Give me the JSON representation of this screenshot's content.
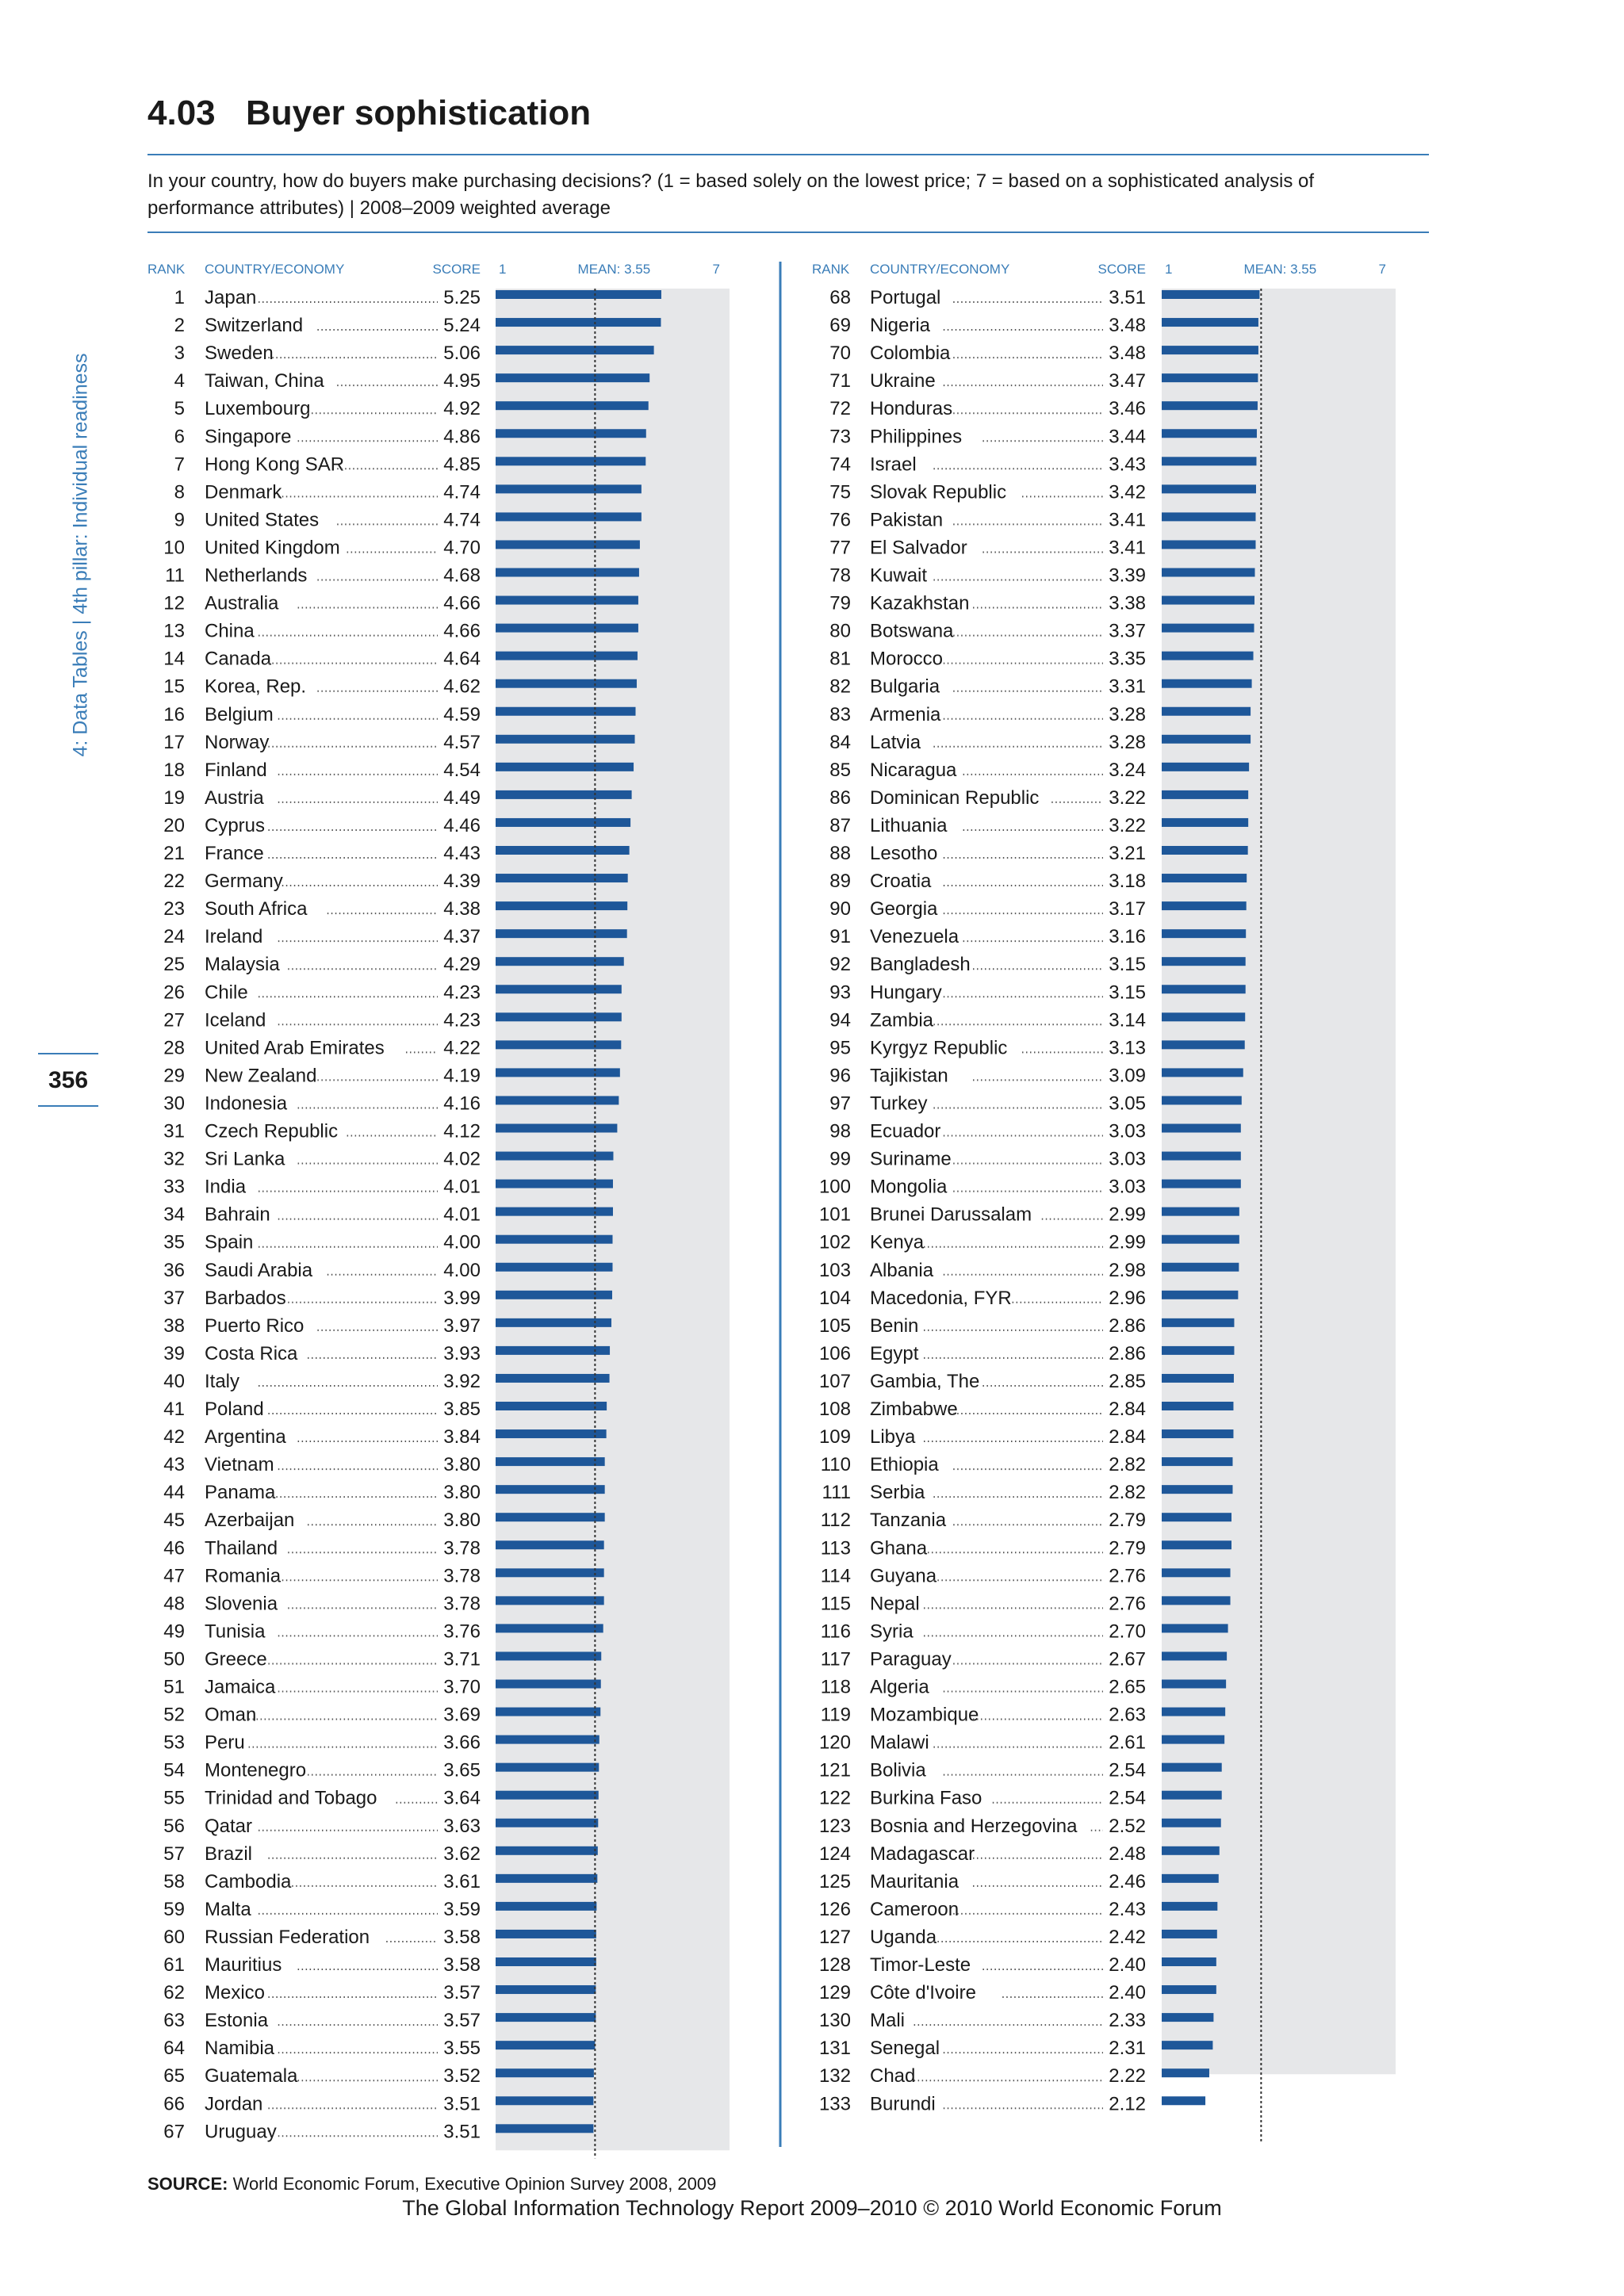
{
  "sidebar": {
    "label": "4: Data Tables  |  4th pillar: Individual readiness"
  },
  "page_number": "356",
  "title": {
    "number": "4.03",
    "text": "Buyer sophistication"
  },
  "question": "In your country, how do buyers make purchasing decisions?   (1 = based solely on the lowest price; 7 = based on a sophisticated analysis of performance attributes)  |  2008–2009 weighted average",
  "source": {
    "label": "SOURCE:",
    "text": "World Economic Forum, Executive Opinion Survey 2008, 2009"
  },
  "footer": "The Global Information Technology Report 2009–2010 © 2010 World Economic Forum",
  "colors": {
    "accent": "#3a7db8",
    "bar": "#1e5799",
    "panel": "#e6e7e9",
    "text": "#1a1a1a"
  },
  "chart_data": {
    "type": "bar",
    "orientation": "horizontal",
    "column_headers": {
      "rank": "RANK",
      "country": "COUNTRY/ECONOMY",
      "score": "SCORE",
      "scale_min": "1",
      "mean": "MEAN: 3.55",
      "scale_max": "7"
    },
    "xlim": [
      1,
      7
    ],
    "mean": 3.55,
    "rows": [
      {
        "rank": 1,
        "country": "Japan",
        "score": 5.25
      },
      {
        "rank": 2,
        "country": "Switzerland",
        "score": 5.24
      },
      {
        "rank": 3,
        "country": "Sweden",
        "score": 5.06
      },
      {
        "rank": 4,
        "country": "Taiwan, China",
        "score": 4.95
      },
      {
        "rank": 5,
        "country": "Luxembourg",
        "score": 4.92
      },
      {
        "rank": 6,
        "country": "Singapore",
        "score": 4.86
      },
      {
        "rank": 7,
        "country": "Hong Kong SAR",
        "score": 4.85
      },
      {
        "rank": 8,
        "country": "Denmark",
        "score": 4.74
      },
      {
        "rank": 9,
        "country": "United States",
        "score": 4.74
      },
      {
        "rank": 10,
        "country": "United Kingdom",
        "score": 4.7
      },
      {
        "rank": 11,
        "country": "Netherlands",
        "score": 4.68
      },
      {
        "rank": 12,
        "country": "Australia",
        "score": 4.66
      },
      {
        "rank": 13,
        "country": "China",
        "score": 4.66
      },
      {
        "rank": 14,
        "country": "Canada",
        "score": 4.64
      },
      {
        "rank": 15,
        "country": "Korea, Rep.",
        "score": 4.62
      },
      {
        "rank": 16,
        "country": "Belgium",
        "score": 4.59
      },
      {
        "rank": 17,
        "country": "Norway",
        "score": 4.57
      },
      {
        "rank": 18,
        "country": "Finland",
        "score": 4.54
      },
      {
        "rank": 19,
        "country": "Austria",
        "score": 4.49
      },
      {
        "rank": 20,
        "country": "Cyprus",
        "score": 4.46
      },
      {
        "rank": 21,
        "country": "France",
        "score": 4.43
      },
      {
        "rank": 22,
        "country": "Germany",
        "score": 4.39
      },
      {
        "rank": 23,
        "country": "South Africa",
        "score": 4.38
      },
      {
        "rank": 24,
        "country": "Ireland",
        "score": 4.37
      },
      {
        "rank": 25,
        "country": "Malaysia",
        "score": 4.29
      },
      {
        "rank": 26,
        "country": "Chile",
        "score": 4.23
      },
      {
        "rank": 27,
        "country": "Iceland",
        "score": 4.23
      },
      {
        "rank": 28,
        "country": "United Arab Emirates",
        "score": 4.22
      },
      {
        "rank": 29,
        "country": "New Zealand",
        "score": 4.19
      },
      {
        "rank": 30,
        "country": "Indonesia",
        "score": 4.16
      },
      {
        "rank": 31,
        "country": "Czech Republic",
        "score": 4.12
      },
      {
        "rank": 32,
        "country": "Sri Lanka",
        "score": 4.02
      },
      {
        "rank": 33,
        "country": "India",
        "score": 4.01
      },
      {
        "rank": 34,
        "country": "Bahrain",
        "score": 4.01
      },
      {
        "rank": 35,
        "country": "Spain",
        "score": 4.0
      },
      {
        "rank": 36,
        "country": "Saudi Arabia",
        "score": 4.0
      },
      {
        "rank": 37,
        "country": "Barbados",
        "score": 3.99
      },
      {
        "rank": 38,
        "country": "Puerto Rico",
        "score": 3.97
      },
      {
        "rank": 39,
        "country": "Costa Rica",
        "score": 3.93
      },
      {
        "rank": 40,
        "country": "Italy",
        "score": 3.92
      },
      {
        "rank": 41,
        "country": "Poland",
        "score": 3.85
      },
      {
        "rank": 42,
        "country": "Argentina",
        "score": 3.84
      },
      {
        "rank": 43,
        "country": "Vietnam",
        "score": 3.8
      },
      {
        "rank": 44,
        "country": "Panama",
        "score": 3.8
      },
      {
        "rank": 45,
        "country": "Azerbaijan",
        "score": 3.8
      },
      {
        "rank": 46,
        "country": "Thailand",
        "score": 3.78
      },
      {
        "rank": 47,
        "country": "Romania",
        "score": 3.78
      },
      {
        "rank": 48,
        "country": "Slovenia",
        "score": 3.78
      },
      {
        "rank": 49,
        "country": "Tunisia",
        "score": 3.76
      },
      {
        "rank": 50,
        "country": "Greece",
        "score": 3.71
      },
      {
        "rank": 51,
        "country": "Jamaica",
        "score": 3.7
      },
      {
        "rank": 52,
        "country": "Oman",
        "score": 3.69
      },
      {
        "rank": 53,
        "country": "Peru",
        "score": 3.66
      },
      {
        "rank": 54,
        "country": "Montenegro",
        "score": 3.65
      },
      {
        "rank": 55,
        "country": "Trinidad and Tobago",
        "score": 3.64
      },
      {
        "rank": 56,
        "country": "Qatar",
        "score": 3.63
      },
      {
        "rank": 57,
        "country": "Brazil",
        "score": 3.62
      },
      {
        "rank": 58,
        "country": "Cambodia",
        "score": 3.61
      },
      {
        "rank": 59,
        "country": "Malta",
        "score": 3.59
      },
      {
        "rank": 60,
        "country": "Russian Federation",
        "score": 3.58
      },
      {
        "rank": 61,
        "country": "Mauritius",
        "score": 3.58
      },
      {
        "rank": 62,
        "country": "Mexico",
        "score": 3.57
      },
      {
        "rank": 63,
        "country": "Estonia",
        "score": 3.57
      },
      {
        "rank": 64,
        "country": "Namibia",
        "score": 3.55
      },
      {
        "rank": 65,
        "country": "Guatemala",
        "score": 3.52
      },
      {
        "rank": 66,
        "country": "Jordan",
        "score": 3.51
      },
      {
        "rank": 67,
        "country": "Uruguay",
        "score": 3.51
      },
      {
        "rank": 68,
        "country": "Portugal",
        "score": 3.51
      },
      {
        "rank": 69,
        "country": "Nigeria",
        "score": 3.48
      },
      {
        "rank": 70,
        "country": "Colombia",
        "score": 3.48
      },
      {
        "rank": 71,
        "country": "Ukraine",
        "score": 3.47
      },
      {
        "rank": 72,
        "country": "Honduras",
        "score": 3.46
      },
      {
        "rank": 73,
        "country": "Philippines",
        "score": 3.44
      },
      {
        "rank": 74,
        "country": "Israel",
        "score": 3.43
      },
      {
        "rank": 75,
        "country": "Slovak Republic",
        "score": 3.42
      },
      {
        "rank": 76,
        "country": "Pakistan",
        "score": 3.41
      },
      {
        "rank": 77,
        "country": "El Salvador",
        "score": 3.41
      },
      {
        "rank": 78,
        "country": "Kuwait",
        "score": 3.39
      },
      {
        "rank": 79,
        "country": "Kazakhstan",
        "score": 3.38
      },
      {
        "rank": 80,
        "country": "Botswana",
        "score": 3.37
      },
      {
        "rank": 81,
        "country": "Morocco",
        "score": 3.35
      },
      {
        "rank": 82,
        "country": "Bulgaria",
        "score": 3.31
      },
      {
        "rank": 83,
        "country": "Armenia",
        "score": 3.28
      },
      {
        "rank": 84,
        "country": "Latvia",
        "score": 3.28
      },
      {
        "rank": 85,
        "country": "Nicaragua",
        "score": 3.24
      },
      {
        "rank": 86,
        "country": "Dominican Republic",
        "score": 3.22
      },
      {
        "rank": 87,
        "country": "Lithuania",
        "score": 3.22
      },
      {
        "rank": 88,
        "country": "Lesotho",
        "score": 3.21
      },
      {
        "rank": 89,
        "country": "Croatia",
        "score": 3.18
      },
      {
        "rank": 90,
        "country": "Georgia",
        "score": 3.17
      },
      {
        "rank": 91,
        "country": "Venezuela",
        "score": 3.16
      },
      {
        "rank": 92,
        "country": "Bangladesh",
        "score": 3.15
      },
      {
        "rank": 93,
        "country": "Hungary",
        "score": 3.15
      },
      {
        "rank": 94,
        "country": "Zambia",
        "score": 3.14
      },
      {
        "rank": 95,
        "country": "Kyrgyz Republic",
        "score": 3.13
      },
      {
        "rank": 96,
        "country": "Tajikistan",
        "score": 3.09
      },
      {
        "rank": 97,
        "country": "Turkey",
        "score": 3.05
      },
      {
        "rank": 98,
        "country": "Ecuador",
        "score": 3.03
      },
      {
        "rank": 99,
        "country": "Suriname",
        "score": 3.03
      },
      {
        "rank": 100,
        "country": "Mongolia",
        "score": 3.03
      },
      {
        "rank": 101,
        "country": "Brunei Darussalam",
        "score": 2.99
      },
      {
        "rank": 102,
        "country": "Kenya",
        "score": 2.99
      },
      {
        "rank": 103,
        "country": "Albania",
        "score": 2.98
      },
      {
        "rank": 104,
        "country": "Macedonia, FYR",
        "score": 2.96
      },
      {
        "rank": 105,
        "country": "Benin",
        "score": 2.86
      },
      {
        "rank": 106,
        "country": "Egypt",
        "score": 2.86
      },
      {
        "rank": 107,
        "country": "Gambia, The",
        "score": 2.85
      },
      {
        "rank": 108,
        "country": "Zimbabwe",
        "score": 2.84
      },
      {
        "rank": 109,
        "country": "Libya",
        "score": 2.84
      },
      {
        "rank": 110,
        "country": "Ethiopia",
        "score": 2.82
      },
      {
        "rank": 111,
        "country": "Serbia",
        "score": 2.82
      },
      {
        "rank": 112,
        "country": "Tanzania",
        "score": 2.79
      },
      {
        "rank": 113,
        "country": "Ghana",
        "score": 2.79
      },
      {
        "rank": 114,
        "country": "Guyana",
        "score": 2.76
      },
      {
        "rank": 115,
        "country": "Nepal",
        "score": 2.76
      },
      {
        "rank": 116,
        "country": "Syria",
        "score": 2.7
      },
      {
        "rank": 117,
        "country": "Paraguay",
        "score": 2.67
      },
      {
        "rank": 118,
        "country": "Algeria",
        "score": 2.65
      },
      {
        "rank": 119,
        "country": "Mozambique",
        "score": 2.63
      },
      {
        "rank": 120,
        "country": "Malawi",
        "score": 2.61
      },
      {
        "rank": 121,
        "country": "Bolivia",
        "score": 2.54
      },
      {
        "rank": 122,
        "country": "Burkina Faso",
        "score": 2.54
      },
      {
        "rank": 123,
        "country": "Bosnia and Herzegovina",
        "score": 2.52
      },
      {
        "rank": 124,
        "country": "Madagascar",
        "score": 2.48
      },
      {
        "rank": 125,
        "country": "Mauritania",
        "score": 2.46
      },
      {
        "rank": 126,
        "country": "Cameroon",
        "score": 2.43
      },
      {
        "rank": 127,
        "country": "Uganda",
        "score": 2.42
      },
      {
        "rank": 128,
        "country": "Timor-Leste",
        "score": 2.4
      },
      {
        "rank": 129,
        "country": "Côte d'Ivoire",
        "score": 2.4
      },
      {
        "rank": 130,
        "country": "Mali",
        "score": 2.33
      },
      {
        "rank": 131,
        "country": "Senegal",
        "score": 2.31
      },
      {
        "rank": 132,
        "country": "Chad",
        "score": 2.22
      },
      {
        "rank": 133,
        "country": "Burundi",
        "score": 2.12
      }
    ]
  }
}
